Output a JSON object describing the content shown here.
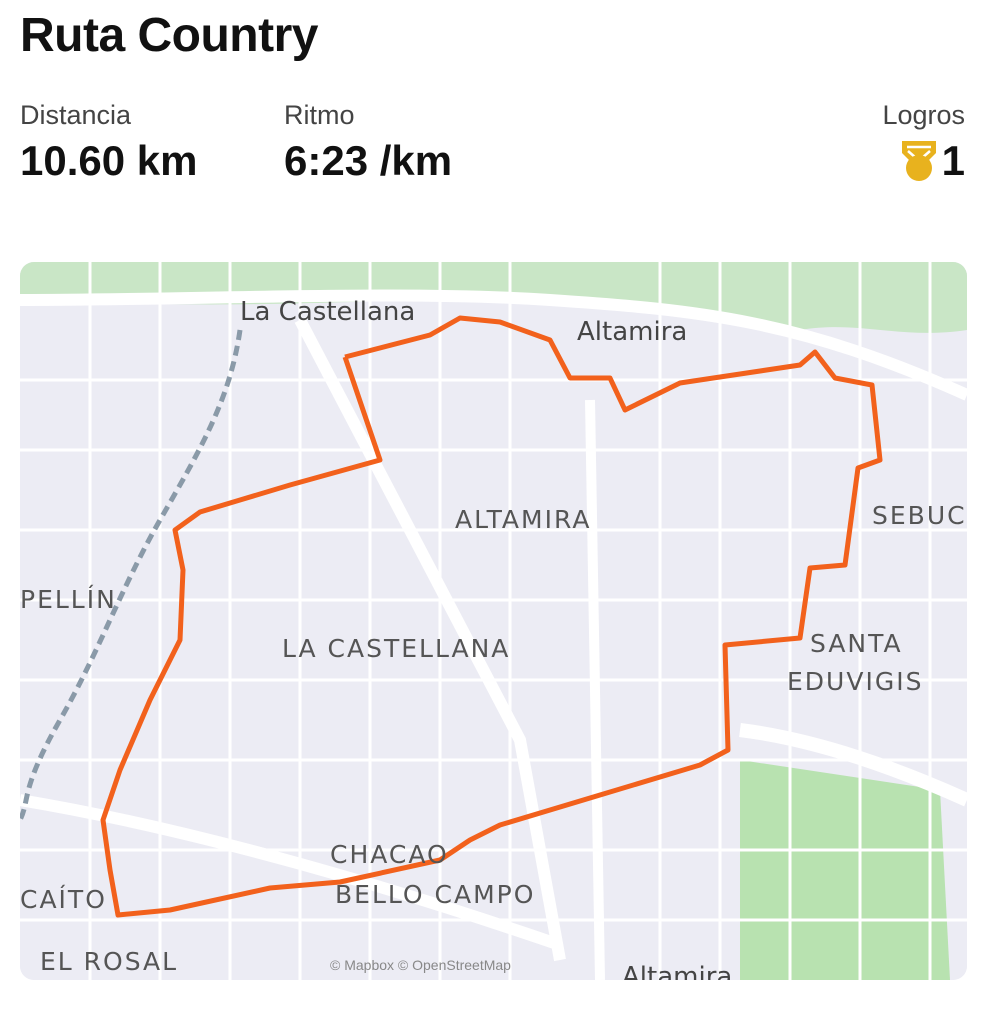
{
  "activity": {
    "title": "Ruta Country"
  },
  "stats": [
    {
      "label": "Distancia",
      "value": "10.60 km"
    },
    {
      "label": "Ritmo",
      "value": "6:23 /km"
    }
  ],
  "achievements": {
    "label": "Logros",
    "count": "1",
    "icon": "medal-icon",
    "color": "#E8B21E"
  },
  "map": {
    "route_color": "#F2611C",
    "attribution": "© Mapbox © OpenStreetMap",
    "labels": [
      "La Castellana",
      "Altamira",
      "ALTAMIRA",
      "SEBUC",
      "PELLÍN",
      "LA CASTELLANA",
      "SANTA",
      "EDUVIGIS",
      "CHACAO",
      "BELLO CAMPO",
      "CAÍTO",
      "EL ROSAL",
      "Altamira"
    ]
  }
}
